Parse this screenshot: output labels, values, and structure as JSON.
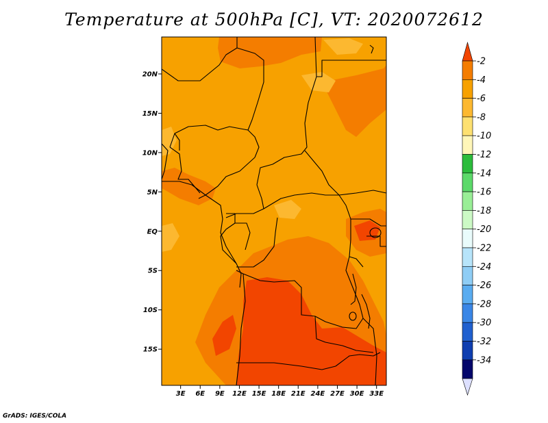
{
  "title": "Temperature at 500hPa [C], VT: 2020072612",
  "credit": "GrADS: IGES/COLA",
  "map": {
    "lat_labels": [
      "20N",
      "15N",
      "10N",
      "5N",
      "EQ",
      "5S",
      "10S",
      "15S"
    ],
    "lat_values": [
      20,
      15,
      10,
      5,
      0,
      -5,
      -10,
      -15
    ],
    "lon_labels": [
      "3E",
      "6E",
      "9E",
      "12E",
      "15E",
      "18E",
      "21E",
      "24E",
      "27E",
      "30E",
      "33E"
    ],
    "lon_values": [
      3,
      6,
      9,
      12,
      15,
      18,
      21,
      24,
      27,
      30,
      33
    ],
    "extent": {
      "lon_min": 0.1,
      "lon_max": 34.5,
      "lat_min": -19.6,
      "lat_max": 24.7
    },
    "colors": {
      "background": "#f7a100",
      "warm_band": "#f47d00",
      "hot_band": "#f24500",
      "light_band": "#fcb830",
      "border": "#000000"
    }
  },
  "colorbar": {
    "labels": [
      "-2",
      "-4",
      "-6",
      "-8",
      "-10",
      "-12",
      "-14",
      "-16",
      "-18",
      "-20",
      "-22",
      "-24",
      "-26",
      "-28",
      "-30",
      "-32",
      "-34"
    ],
    "colors": [
      "#f24500",
      "#f47d00",
      "#f7a100",
      "#fcb830",
      "#fde071",
      "#fff6b8",
      "#2cbc3c",
      "#5cd96a",
      "#99ee96",
      "#ccf9c5",
      "#e9fbfb",
      "#b7e4fa",
      "#8fcdf5",
      "#5aacf0",
      "#3a86e6",
      "#2060cf",
      "#0f3eb0",
      "#04066b",
      "#dde0ff"
    ]
  }
}
